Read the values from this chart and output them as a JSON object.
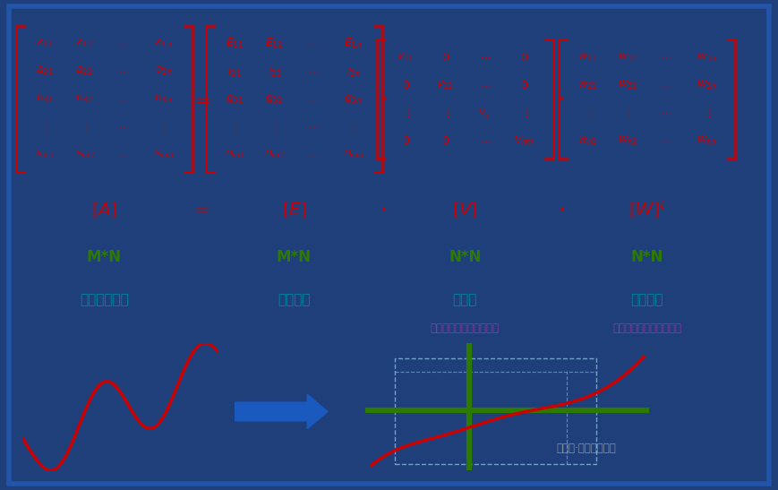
{
  "bg_color": "#1e3f7a",
  "inner_bg": "#ffffff",
  "border_color": "#2255aa",
  "red_color": "#cc0000",
  "green_color": "#2d7a00",
  "blue_color": "#1a5abf",
  "cyan_color": "#008899",
  "purple_color": "#9933aa",
  "watermark_color": "#bbbbbb",
  "label_A_dim": "M*N",
  "label_E_dim": "M*N",
  "label_V_dim": "N*N",
  "label_W_dim": "N*N",
  "label_A_desc": "吸收谱数据组",
  "label_E_desc": "组元数组",
  "label_V_desc": "本征值",
  "label_W_desc": "权重因子",
  "label_V_sub": "（在整个数据组的权重）",
  "label_W_sub": "（单个谱的权重重要性）",
  "watermark": "公众号·生化环材前沿"
}
